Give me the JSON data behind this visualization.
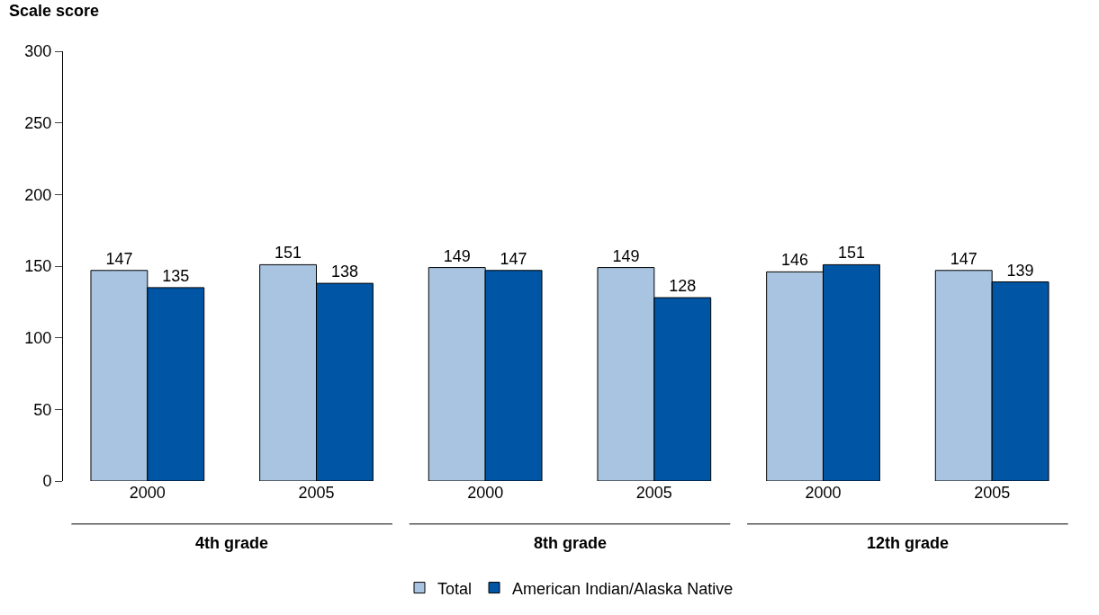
{
  "chart_data": {
    "type": "bar",
    "ylabel": "Scale score",
    "categories": [
      "2000",
      "2005",
      "2000",
      "2005",
      "2000",
      "2005"
    ],
    "series": [
      {
        "name": "Total",
        "color": "#a9c4e0",
        "values": [
          147,
          151,
          149,
          149,
          146,
          147
        ]
      },
      {
        "name": "American Indian/Alaska Native",
        "color": "#0055a5",
        "values": [
          135,
          138,
          147,
          128,
          151,
          139
        ]
      }
    ],
    "annotations": [
      "4th grade",
      "8th grade",
      "12th grade"
    ],
    "ylim": [
      0,
      300
    ],
    "yticks": [
      0,
      50,
      100,
      150,
      200,
      250,
      300
    ],
    "data_labels": true,
    "legend": "bottom"
  }
}
